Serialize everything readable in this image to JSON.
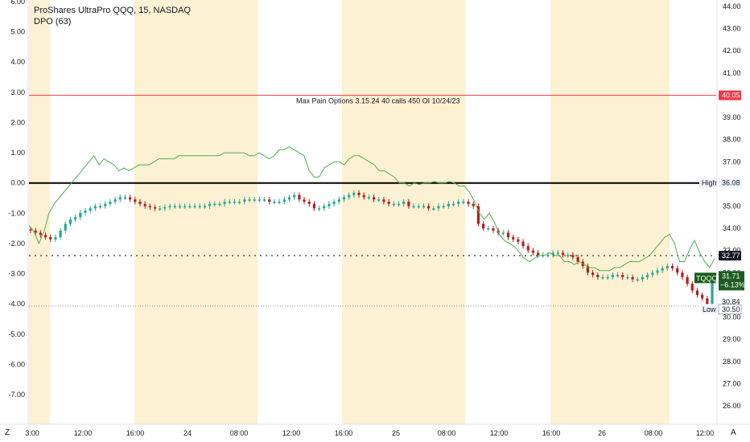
{
  "header": {
    "symbol_line": "ProShares UltraPro QQQ, 15, NASDAQ",
    "indicator_line": "DPO (63)"
  },
  "annotation": "Max Pain Options 3.15.24 40 calls 450 OI 10/24/23",
  "corner_left": "Z",
  "corner_right": "A",
  "colors": {
    "session_fill": "#fdf1d3",
    "up_candle": "#26a69a",
    "down_candle": "#b71c1c",
    "dpo_line": "#4caf50",
    "red_line": "#f23645",
    "black_line": "#000000",
    "ticker_badge": "#1b5e20"
  },
  "chart_data": {
    "type": "line",
    "title": "ProShares UltraPro QQQ, 15, NASDAQ",
    "price_axis": {
      "ticks": [
        "44.00",
        "43.00",
        "42.00",
        "41.00",
        "39.00",
        "38.00",
        "37.00",
        "35.00",
        "34.00",
        "33.00",
        "32.00",
        "30.00",
        "29.00",
        "28.00",
        "27.00",
        "26.00"
      ],
      "range": [
        25.4,
        44.3
      ]
    },
    "dpo_axis": {
      "ticks": [
        "6.00",
        "5.00",
        "4.00",
        "3.00",
        "2.00",
        "1.00",
        "0.00",
        "-1.00",
        "-2.00",
        "-3.00",
        "-4.00",
        "-5.00",
        "-6.00",
        "-7.00"
      ],
      "range": [
        -8.5,
        6.0
      ]
    },
    "x_ticks": [
      "3:00",
      "12:00",
      "16:00",
      "24",
      "08:00",
      "12:00",
      "16:00",
      "25",
      "08:00",
      "12:00",
      "16:00",
      "26",
      "08:00",
      "12:00"
    ],
    "price_labels": [
      {
        "name": "red_level",
        "value": 40.05,
        "text": "40.05"
      },
      {
        "name": "high",
        "value": 36.08,
        "text": "36.08",
        "caption": "High"
      },
      {
        "name": "dotted_level",
        "value": 32.77,
        "text": "32.77"
      },
      {
        "name": "last",
        "value": 31.71,
        "text": "31.71",
        "ticker": "TQQQ",
        "change": "−6.13%"
      },
      {
        "name": "prev",
        "value": 30.84,
        "text": "30.84"
      },
      {
        "name": "low",
        "value": 30.5,
        "text": "30.50",
        "caption": "Low"
      }
    ],
    "price_series": [
      33.9,
      33.8,
      33.7,
      33.6,
      33.5,
      33.6,
      33.9,
      34.2,
      34.4,
      34.5,
      34.7,
      34.8,
      34.9,
      35.0,
      35.0,
      35.1,
      35.2,
      35.3,
      35.4,
      35.4,
      35.3,
      35.2,
      35.1,
      35.0,
      34.95,
      34.9,
      34.9,
      34.95,
      35.0,
      35.0,
      35.0,
      35.0,
      35.0,
      35.0,
      35.0,
      35.0,
      35.1,
      35.1,
      35.1,
      35.2,
      35.2,
      35.2,
      35.2,
      35.3,
      35.3,
      35.3,
      35.3,
      35.3,
      35.2,
      35.2,
      35.2,
      35.3,
      35.4,
      35.5,
      35.3,
      35.2,
      35.1,
      34.9,
      34.9,
      35.0,
      35.1,
      35.2,
      35.3,
      35.4,
      35.5,
      35.6,
      35.5,
      35.4,
      35.4,
      35.3,
      35.3,
      35.2,
      35.1,
      35.1,
      35.1,
      35.2,
      35.0,
      35.0,
      35.0,
      35.0,
      34.9,
      34.9,
      35.0,
      35.0,
      35.1,
      35.1,
      35.2,
      35.2,
      35.1,
      35.0,
      34.2,
      34.0,
      34.0,
      33.9,
      33.8,
      33.8,
      33.6,
      33.5,
      33.4,
      33.2,
      33.0,
      32.9,
      32.8,
      32.8,
      32.8,
      32.9,
      32.9,
      32.8,
      32.8,
      32.7,
      32.5,
      32.3,
      32.0,
      31.9,
      31.8,
      31.8,
      31.8,
      31.9,
      31.9,
      31.8,
      31.8,
      31.7,
      31.7,
      31.8,
      31.9,
      32.0,
      32.1,
      32.2,
      32.3,
      32.2,
      32.0,
      31.8,
      31.5,
      31.2,
      31.0,
      30.84,
      30.6,
      31.71
    ],
    "dpo_series": [
      -1.4,
      -1.6,
      -2.0,
      -1.6,
      -1.0,
      -0.7,
      -0.5,
      -0.3,
      -0.1,
      0.1,
      0.3,
      0.5,
      0.7,
      0.9,
      0.6,
      0.8,
      0.7,
      0.6,
      0.4,
      0.5,
      0.4,
      0.5,
      0.6,
      0.6,
      0.6,
      0.7,
      0.8,
      0.8,
      0.8,
      0.8,
      0.9,
      0.9,
      0.9,
      0.9,
      0.9,
      0.9,
      0.9,
      0.9,
      0.9,
      1.0,
      1.0,
      1.0,
      1.0,
      1.0,
      0.9,
      0.9,
      1.0,
      0.9,
      0.8,
      0.9,
      1.1,
      1.1,
      1.2,
      1.1,
      1.0,
      0.9,
      0.4,
      0.2,
      0.2,
      0.5,
      0.6,
      0.7,
      0.7,
      0.6,
      0.8,
      0.9,
      0.9,
      0.8,
      0.7,
      0.6,
      0.4,
      0.4,
      0.3,
      0.2,
      0.0,
      0.0,
      -0.1,
      0.0,
      -0.05,
      0.0,
      0.0,
      0.05,
      0.0,
      0.0,
      0.05,
      0.0,
      -0.1,
      -0.1,
      -0.3,
      -0.6,
      -1.0,
      -1.2,
      -1.0,
      -1.3,
      -1.7,
      -1.9,
      -2.0,
      -2.1,
      -2.3,
      -2.5,
      -2.6,
      -2.5,
      -2.4,
      -2.4,
      -2.3,
      -2.4,
      -2.4,
      -2.6,
      -2.6,
      -2.7,
      -2.6,
      -2.7,
      -2.8,
      -2.8,
      -2.9,
      -2.9,
      -2.9,
      -2.8,
      -2.8,
      -2.7,
      -2.6,
      -2.6,
      -2.6,
      -2.5,
      -2.4,
      -2.2,
      -2.0,
      -1.8,
      -1.7,
      -2.0,
      -2.6,
      -2.6,
      -2.2,
      -1.9,
      -2.3,
      -2.6,
      -2.8,
      -2.5
    ],
    "red_line_dpo": 2.9,
    "black_line_dpo": 0.0,
    "dotted_price": 32.77,
    "low_price": 30.5
  }
}
